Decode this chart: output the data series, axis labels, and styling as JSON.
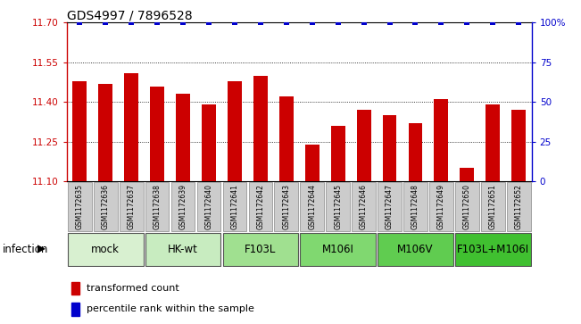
{
  "title": "GDS4997 / 7896528",
  "samples": [
    "GSM1172635",
    "GSM1172636",
    "GSM1172637",
    "GSM1172638",
    "GSM1172639",
    "GSM1172640",
    "GSM1172641",
    "GSM1172642",
    "GSM1172643",
    "GSM1172644",
    "GSM1172645",
    "GSM1172646",
    "GSM1172647",
    "GSM1172648",
    "GSM1172649",
    "GSM1172650",
    "GSM1172651",
    "GSM1172652"
  ],
  "bar_values": [
    11.48,
    11.47,
    11.51,
    11.46,
    11.43,
    11.39,
    11.48,
    11.5,
    11.42,
    11.24,
    11.31,
    11.37,
    11.35,
    11.32,
    11.41,
    11.15,
    11.39,
    11.37
  ],
  "percentile_values": [
    100,
    100,
    100,
    100,
    100,
    100,
    100,
    100,
    100,
    100,
    100,
    100,
    100,
    100,
    100,
    100,
    100,
    100
  ],
  "groups": [
    {
      "label": "mock",
      "start": 0,
      "end": 2,
      "color": "#d8f0d0"
    },
    {
      "label": "HK-wt",
      "start": 3,
      "end": 5,
      "color": "#c8ecc0"
    },
    {
      "label": "F103L",
      "start": 6,
      "end": 8,
      "color": "#a0e090"
    },
    {
      "label": "M106I",
      "start": 9,
      "end": 11,
      "color": "#80d870"
    },
    {
      "label": "M106V",
      "start": 12,
      "end": 14,
      "color": "#60cc50"
    },
    {
      "label": "F103L+M106I",
      "start": 15,
      "end": 17,
      "color": "#40c030"
    }
  ],
  "ylim_left": [
    11.1,
    11.7
  ],
  "ylim_right": [
    0,
    100
  ],
  "yticks_left": [
    11.1,
    11.25,
    11.4,
    11.55,
    11.7
  ],
  "yticks_right": [
    0,
    25,
    50,
    75,
    100
  ],
  "bar_color": "#cc0000",
  "dot_color": "#0000cc",
  "sample_box_color": "#cccccc",
  "infection_label": "infection",
  "legend_bar_label": "transformed count",
  "legend_dot_label": "percentile rank within the sample",
  "bar_width": 0.55,
  "title_fontsize": 10,
  "tick_fontsize": 7.5,
  "sample_fontsize": 5.5,
  "group_label_fontsize": 8.5,
  "infection_fontsize": 8.5,
  "legend_fontsize": 8
}
